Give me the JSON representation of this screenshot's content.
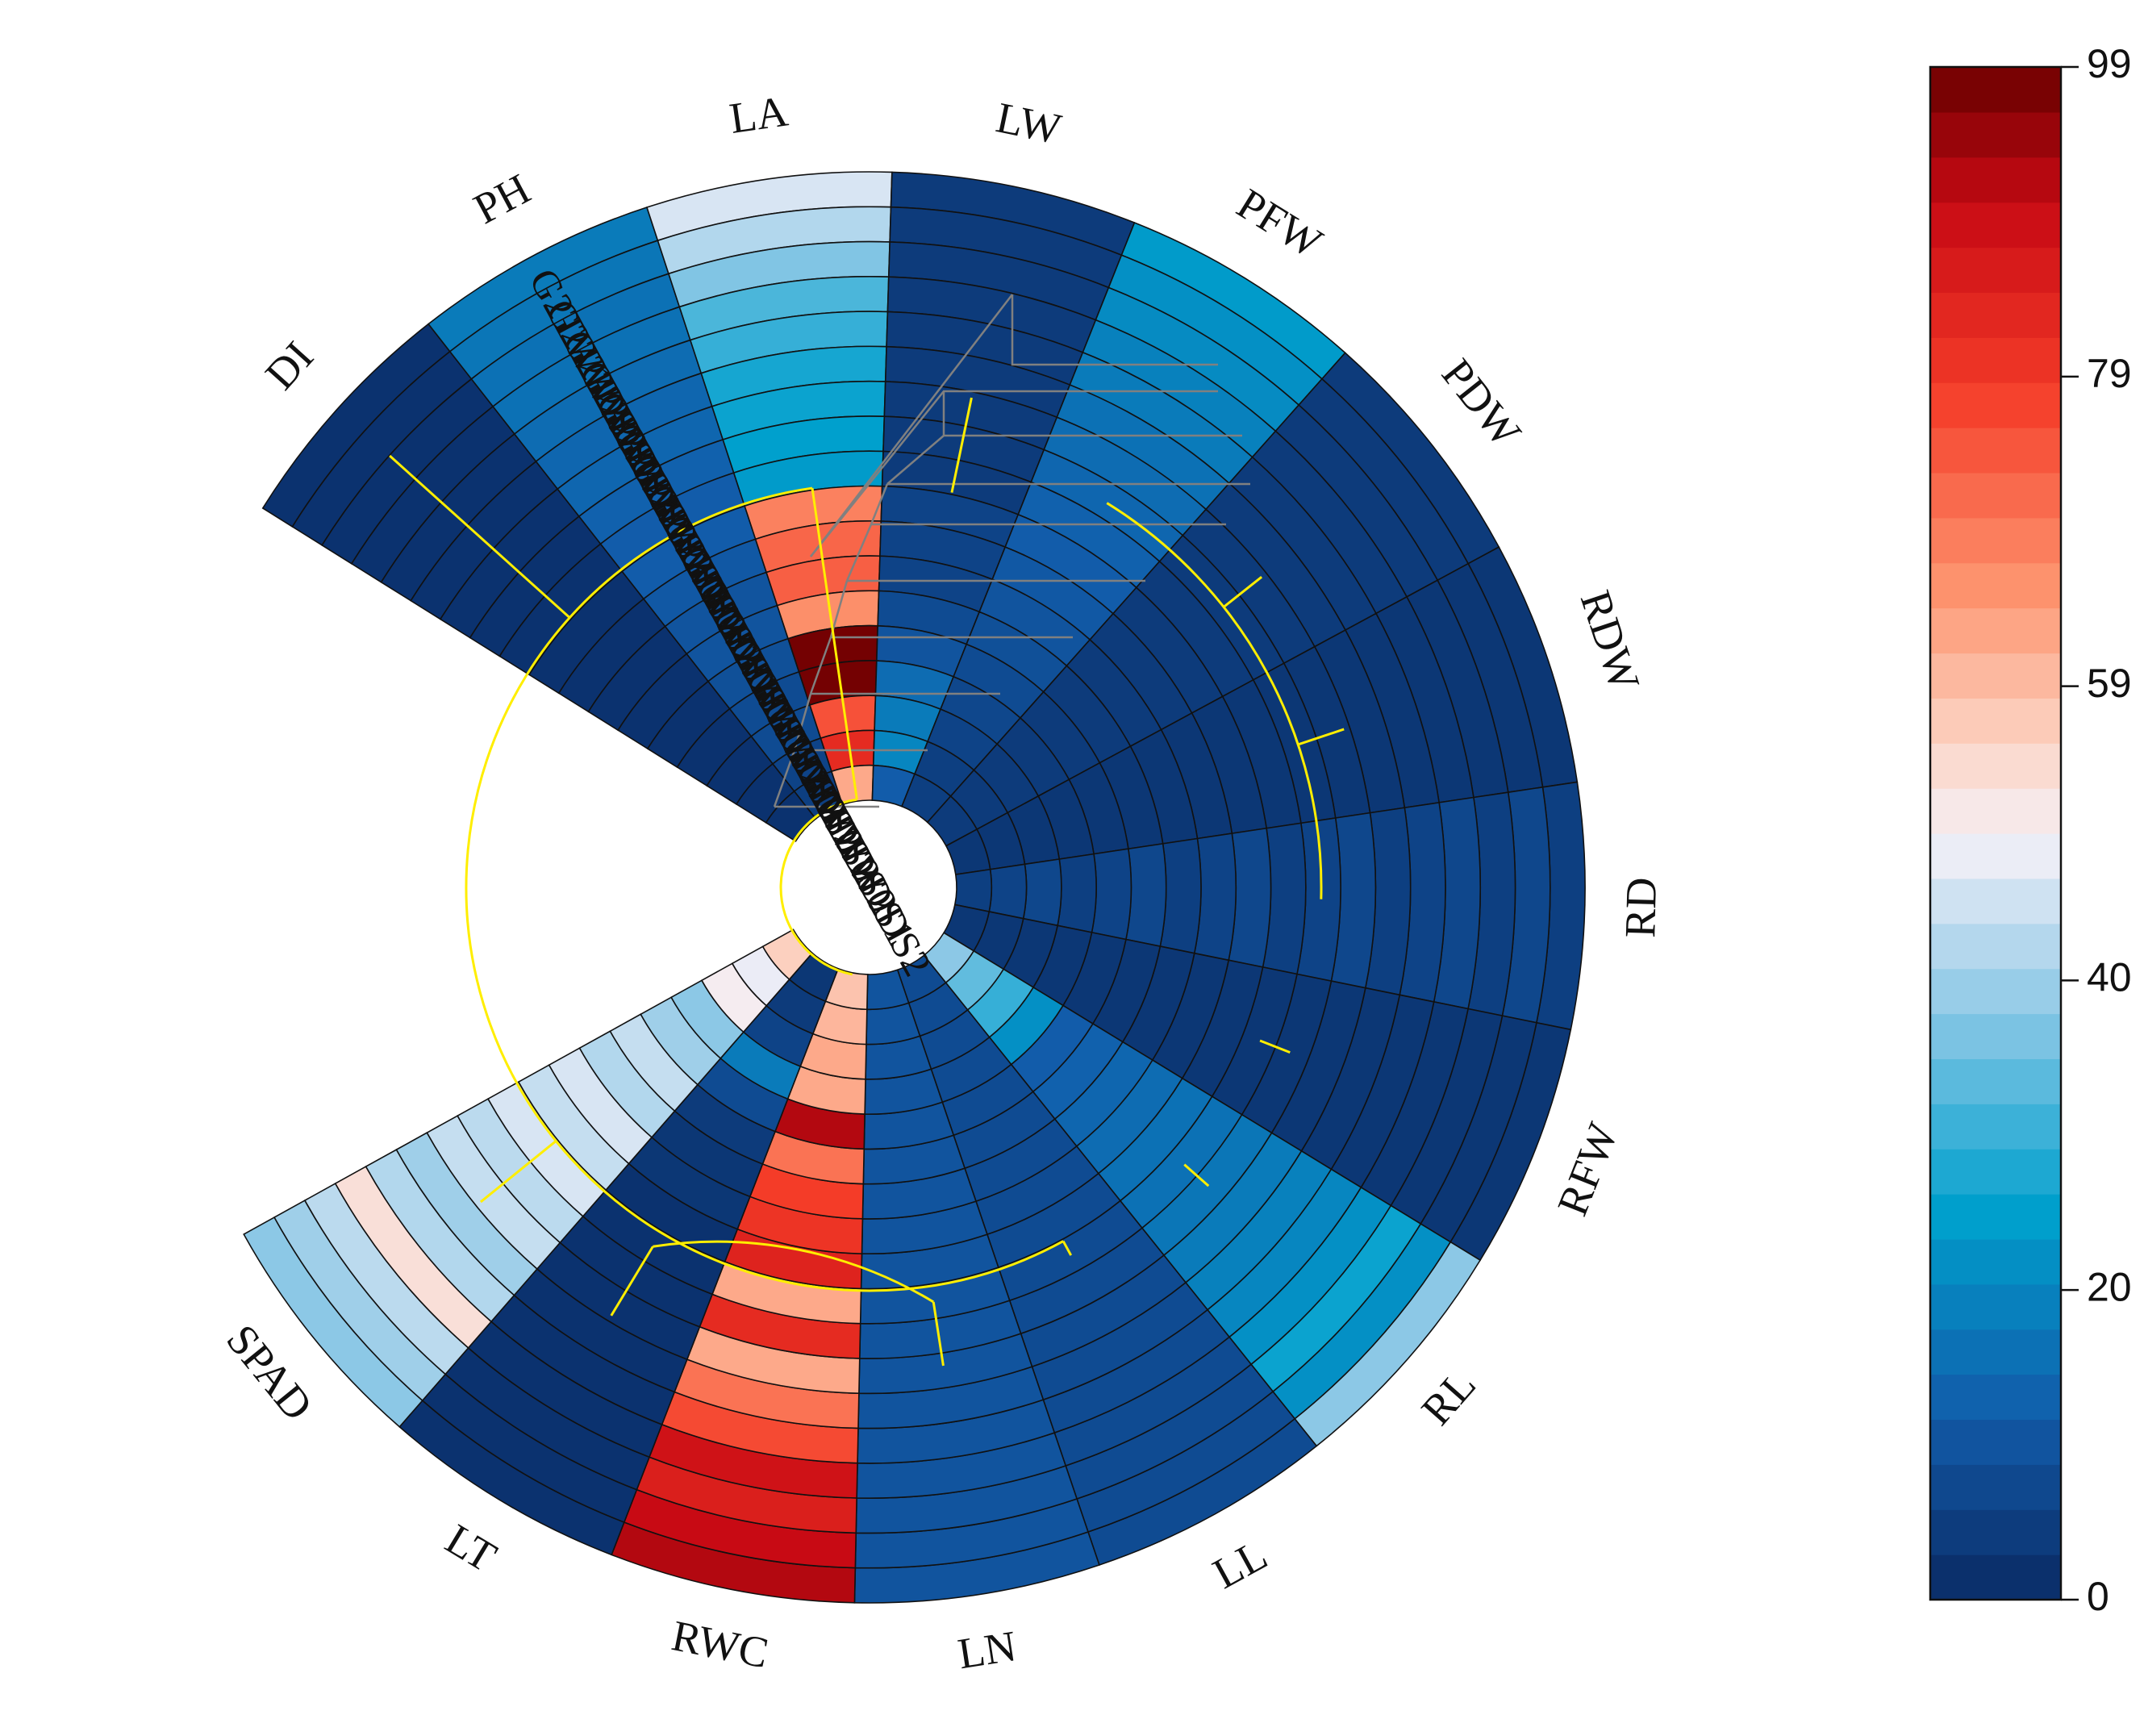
{
  "chart_data": {
    "type": "heatmap",
    "layout": "circular",
    "title": "",
    "traits": [
      "DI",
      "PH",
      "LA",
      "LW",
      "PFW",
      "PDW",
      "RDW",
      "RD",
      "RFW",
      "RL",
      "LL",
      "LN",
      "RWC",
      "LT",
      "SPAD"
    ],
    "samples": [
      "G2TW1DS0",
      "G2TW2DS0",
      "G2TW2DS1",
      "G2TW0DS0",
      "G2TW2DS2",
      "G2TW1DS1",
      "G2TW1DS2",
      "G2TW0DS2",
      "G2TW0DS1",
      "G1TW2DS0",
      "G1TW1DS0",
      "G1TW1DS1",
      "G1TW1DS2",
      "G1TW2DS0",
      "G1TW0DS2",
      "G1TW2DS2",
      "G1TW0DS1",
      "G1TW0DS2"
    ],
    "values": {
      "DI": [
        2,
        2,
        2,
        2,
        2,
        2,
        2,
        2,
        2,
        2,
        2,
        2,
        2,
        2,
        2,
        2,
        2,
        2
      ],
      "PH": [
        18,
        17,
        16,
        16,
        15,
        14,
        14,
        13,
        12,
        12,
        11,
        10,
        10,
        9,
        8,
        8,
        6,
        5
      ],
      "LA": [
        46,
        42,
        37,
        32,
        30,
        27,
        26,
        25,
        24,
        68,
        72,
        73,
        66,
        98,
        98,
        75,
        82,
        62
      ],
      "LW": [
        4,
        4,
        4,
        4,
        4,
        4,
        4,
        4,
        4,
        6,
        6,
        6,
        8,
        10,
        15,
        18,
        20,
        12
      ],
      "PFW": [
        24,
        22,
        21,
        19,
        18,
        16,
        15,
        14,
        13,
        12,
        11,
        10,
        9,
        8,
        7,
        6,
        5,
        5
      ],
      "PDW": [
        4,
        4,
        4,
        4,
        4,
        4,
        4,
        4,
        4,
        4,
        4,
        4,
        4,
        4,
        4,
        4,
        4,
        4
      ],
      "RDW": [
        3,
        3,
        3,
        3,
        3,
        3,
        3,
        3,
        3,
        3,
        3,
        3,
        3,
        3,
        3,
        3,
        3,
        3
      ],
      "RD": [
        5,
        7,
        5,
        7,
        6,
        5,
        7,
        6,
        5,
        7,
        6,
        5,
        7,
        6,
        5,
        7,
        6,
        5
      ],
      "RFW": [
        3,
        3,
        3,
        3,
        3,
        3,
        3,
        3,
        3,
        3,
        3,
        3,
        3,
        3,
        3,
        3,
        3,
        3
      ],
      "RL": [
        38,
        22,
        26,
        22,
        20,
        19,
        18,
        17,
        16,
        16,
        15,
        14,
        13,
        12,
        22,
        30,
        34,
        38
      ],
      "LL": [
        8,
        8,
        8,
        8,
        8,
        8,
        8,
        8,
        8,
        8,
        8,
        8,
        8,
        8,
        8,
        8,
        8,
        8
      ],
      "LN": [
        10,
        10,
        10,
        10,
        10,
        10,
        10,
        10,
        10,
        10,
        10,
        10,
        10,
        10,
        10,
        10,
        10,
        10
      ],
      "RWC": [
        92,
        90,
        85,
        88,
        76,
        70,
        62,
        82,
        62,
        84,
        80,
        78,
        70,
        92,
        62,
        62,
        60,
        58
      ],
      "LT": [
        2,
        2,
        2,
        2,
        2,
        2,
        2,
        2,
        2,
        2,
        3,
        3,
        4,
        8,
        18,
        6,
        4,
        3
      ],
      "SPAD": [
        38,
        40,
        43,
        53,
        42,
        40,
        44,
        43,
        46,
        44,
        46,
        42,
        44,
        40,
        38,
        50,
        48,
        56
      ]
    },
    "colorbar": {
      "min": 0,
      "max": 99,
      "ticks": [
        0,
        20,
        40,
        59,
        79,
        99
      ],
      "segments": 34
    },
    "colors": {
      "low": "#0a2a63",
      "mid": "#fbe9e4",
      "high": "#6b0000",
      "dendrogram": "#808080",
      "cluster_lines": "#ffee00"
    }
  }
}
